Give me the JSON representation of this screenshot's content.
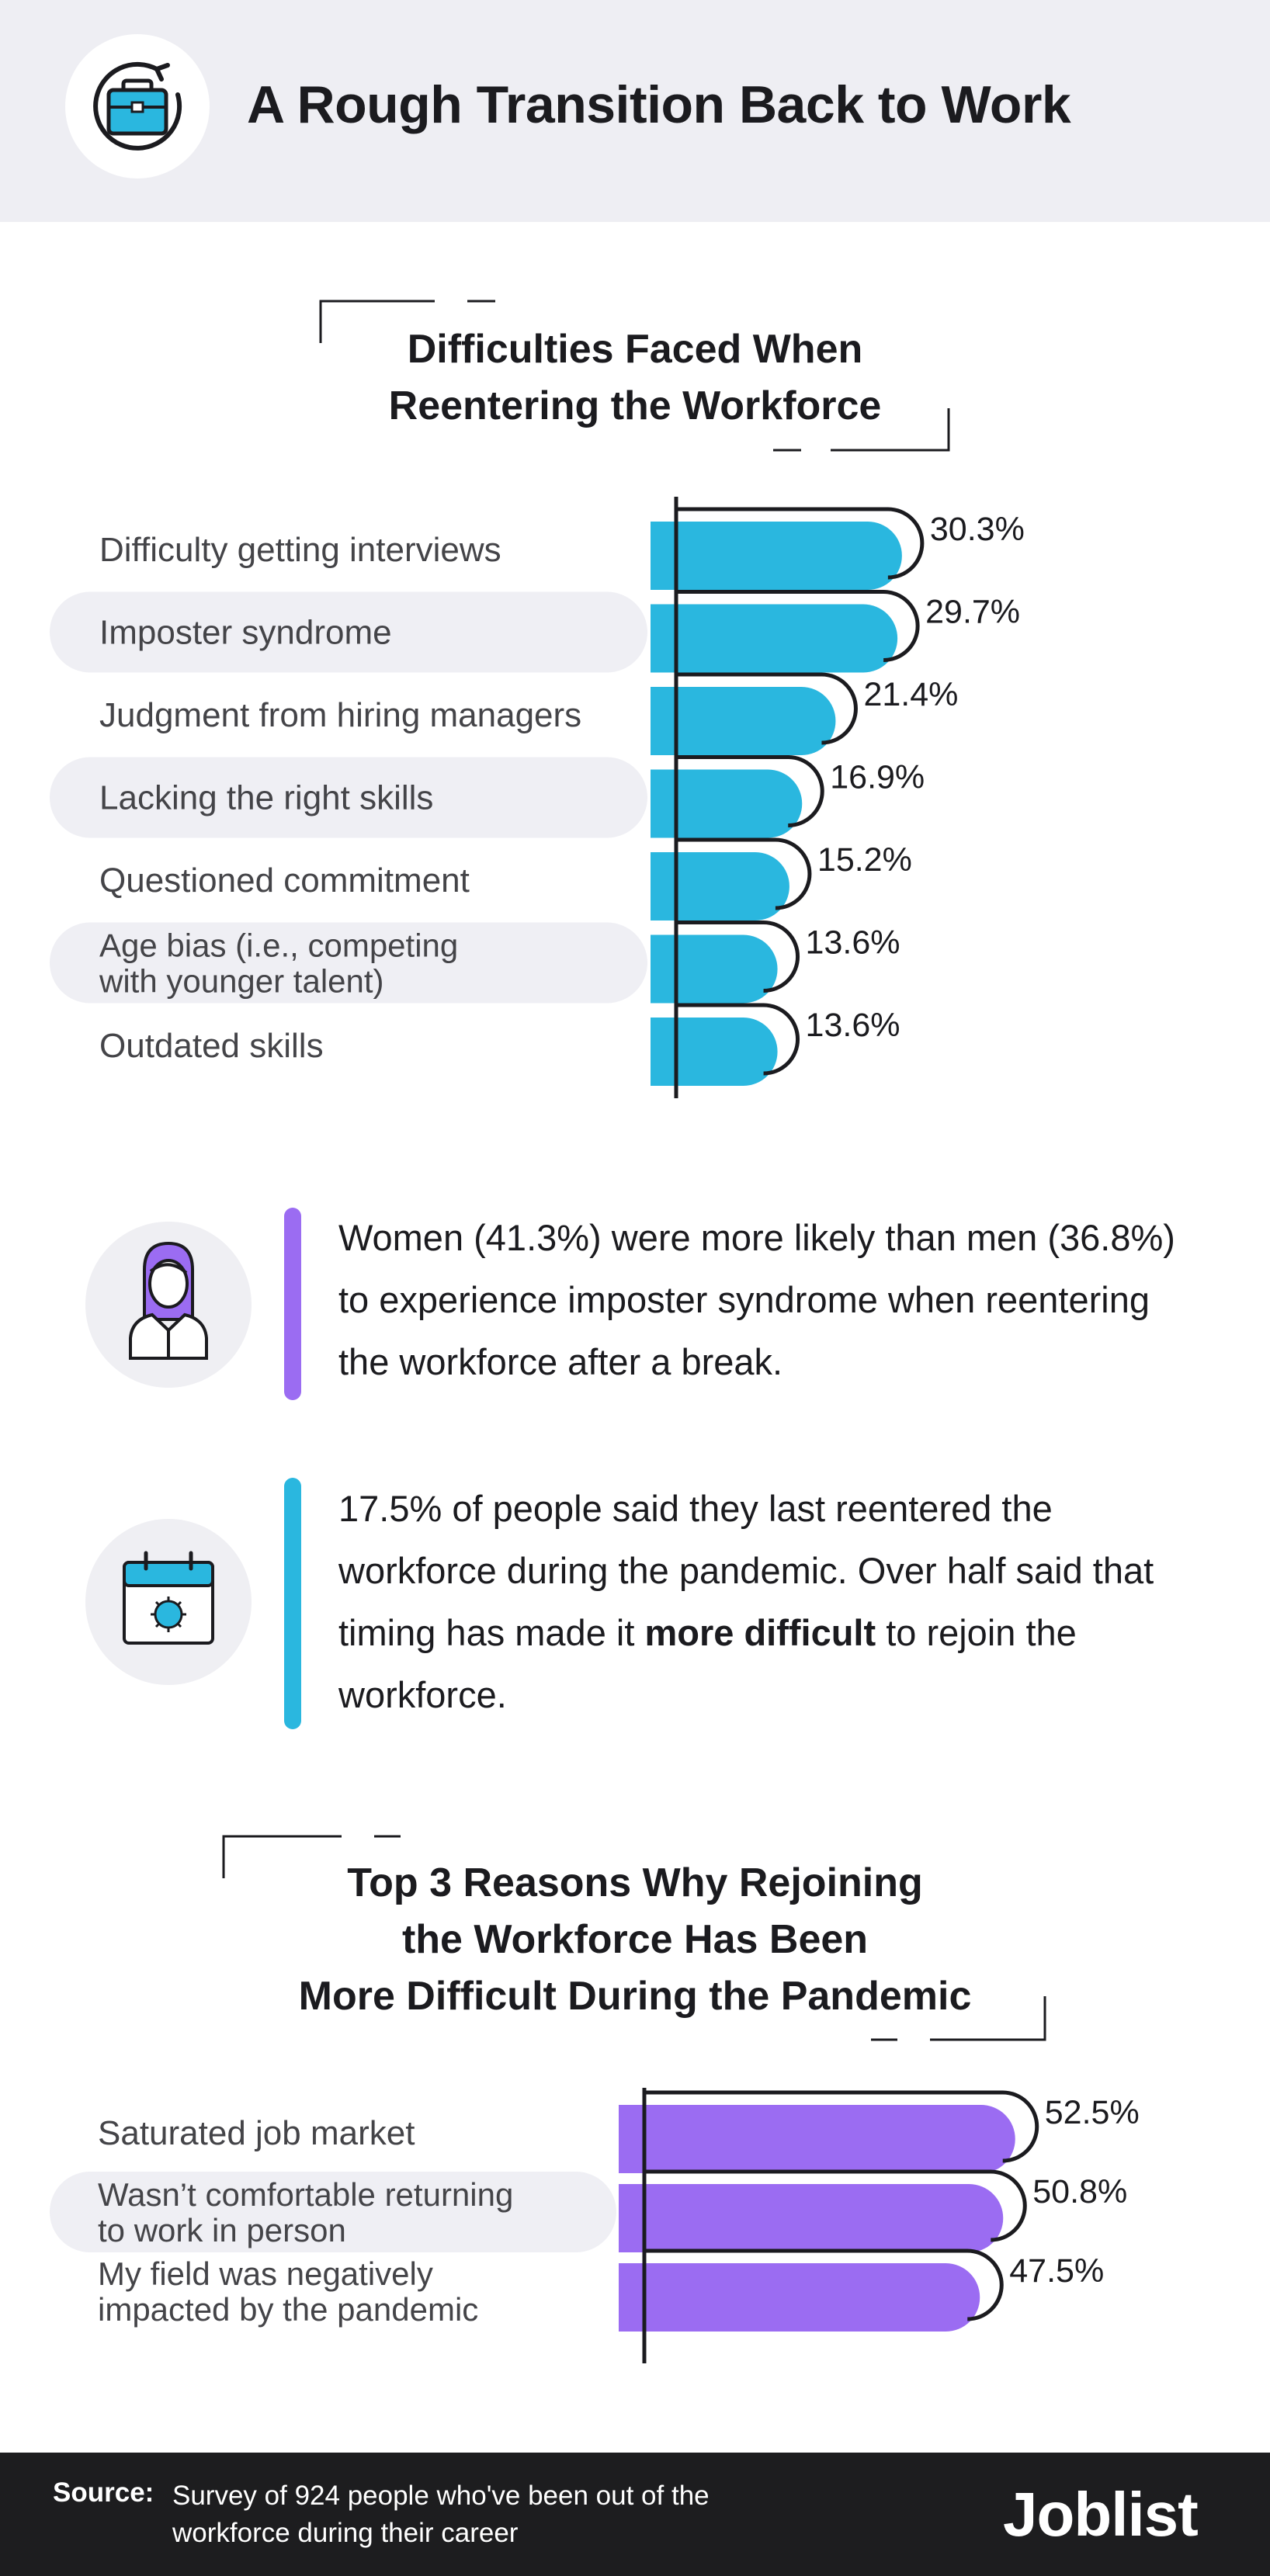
{
  "header": {
    "title": "A Rough Transition Back to Work",
    "icon": "briefcase-refresh-icon"
  },
  "colors": {
    "header_bg": "#eeeef3",
    "blue": "#2ab7df",
    "purple": "#9b6cf2",
    "footer_bg": "#1d1d1f",
    "row_highlight": "#efeff4"
  },
  "section1": {
    "title_line1": "Difficulties Faced When",
    "title_line2": "Reentering the Workforce"
  },
  "section2": {
    "title_line1": "Top 3 Reasons Why Rejoining",
    "title_line2": "the Workforce Has Been",
    "title_line3": "More Difficult During the Pandemic"
  },
  "chart_data": [
    {
      "type": "bar",
      "orientation": "horizontal",
      "title": "Difficulties Faced When Reentering the Workforce",
      "categories": [
        [
          "Difficulty getting interviews"
        ],
        [
          "Imposter syndrome"
        ],
        [
          "Judgment from hiring managers"
        ],
        [
          "Lacking the right skills"
        ],
        [
          "Questioned commitment"
        ],
        [
          "Age bias (i.e., competing",
          "with younger talent)"
        ],
        [
          "Outdated skills"
        ]
      ],
      "values": [
        30.3,
        29.7,
        21.4,
        16.9,
        15.2,
        13.6,
        13.6
      ],
      "value_labels": [
        "30.3%",
        "29.7%",
        "21.4%",
        "16.9%",
        "15.2%",
        "13.6%",
        "13.6%"
      ],
      "unit": "%",
      "color": "#2ab7df"
    },
    {
      "type": "bar",
      "orientation": "horizontal",
      "title": "Top 3 Reasons Why Rejoining the Workforce Has Been More Difficult During the Pandemic",
      "categories": [
        [
          "Saturated job market"
        ],
        [
          "Wasn’t comfortable returning",
          "to work in person"
        ],
        [
          "My field was negatively",
          "impacted by the pandemic"
        ]
      ],
      "values": [
        52.5,
        50.8,
        47.5
      ],
      "value_labels": [
        "52.5%",
        "50.8%",
        "47.5%"
      ],
      "unit": "%",
      "color": "#9b6cf2"
    }
  ],
  "facts": [
    {
      "icon": "businesswoman-icon",
      "accent": "#9b6cf2",
      "text": "Women (41.3%) were more likely than men (36.8%) to experience imposter syndrome when reentering the workforce after a break."
    },
    {
      "icon": "calendar-virus-icon",
      "accent": "#2ab7df",
      "text_before": "17.5% of people said they last reentered the workforce during the pandemic. Over half said that timing has made it ",
      "text_bold": "more difficult",
      "text_after": " to rejoin the workforce."
    }
  ],
  "footer": {
    "source_label": "Source:",
    "source_text": "Survey of 924 people who've been out of the workforce during their career",
    "logo": "Joblist"
  }
}
